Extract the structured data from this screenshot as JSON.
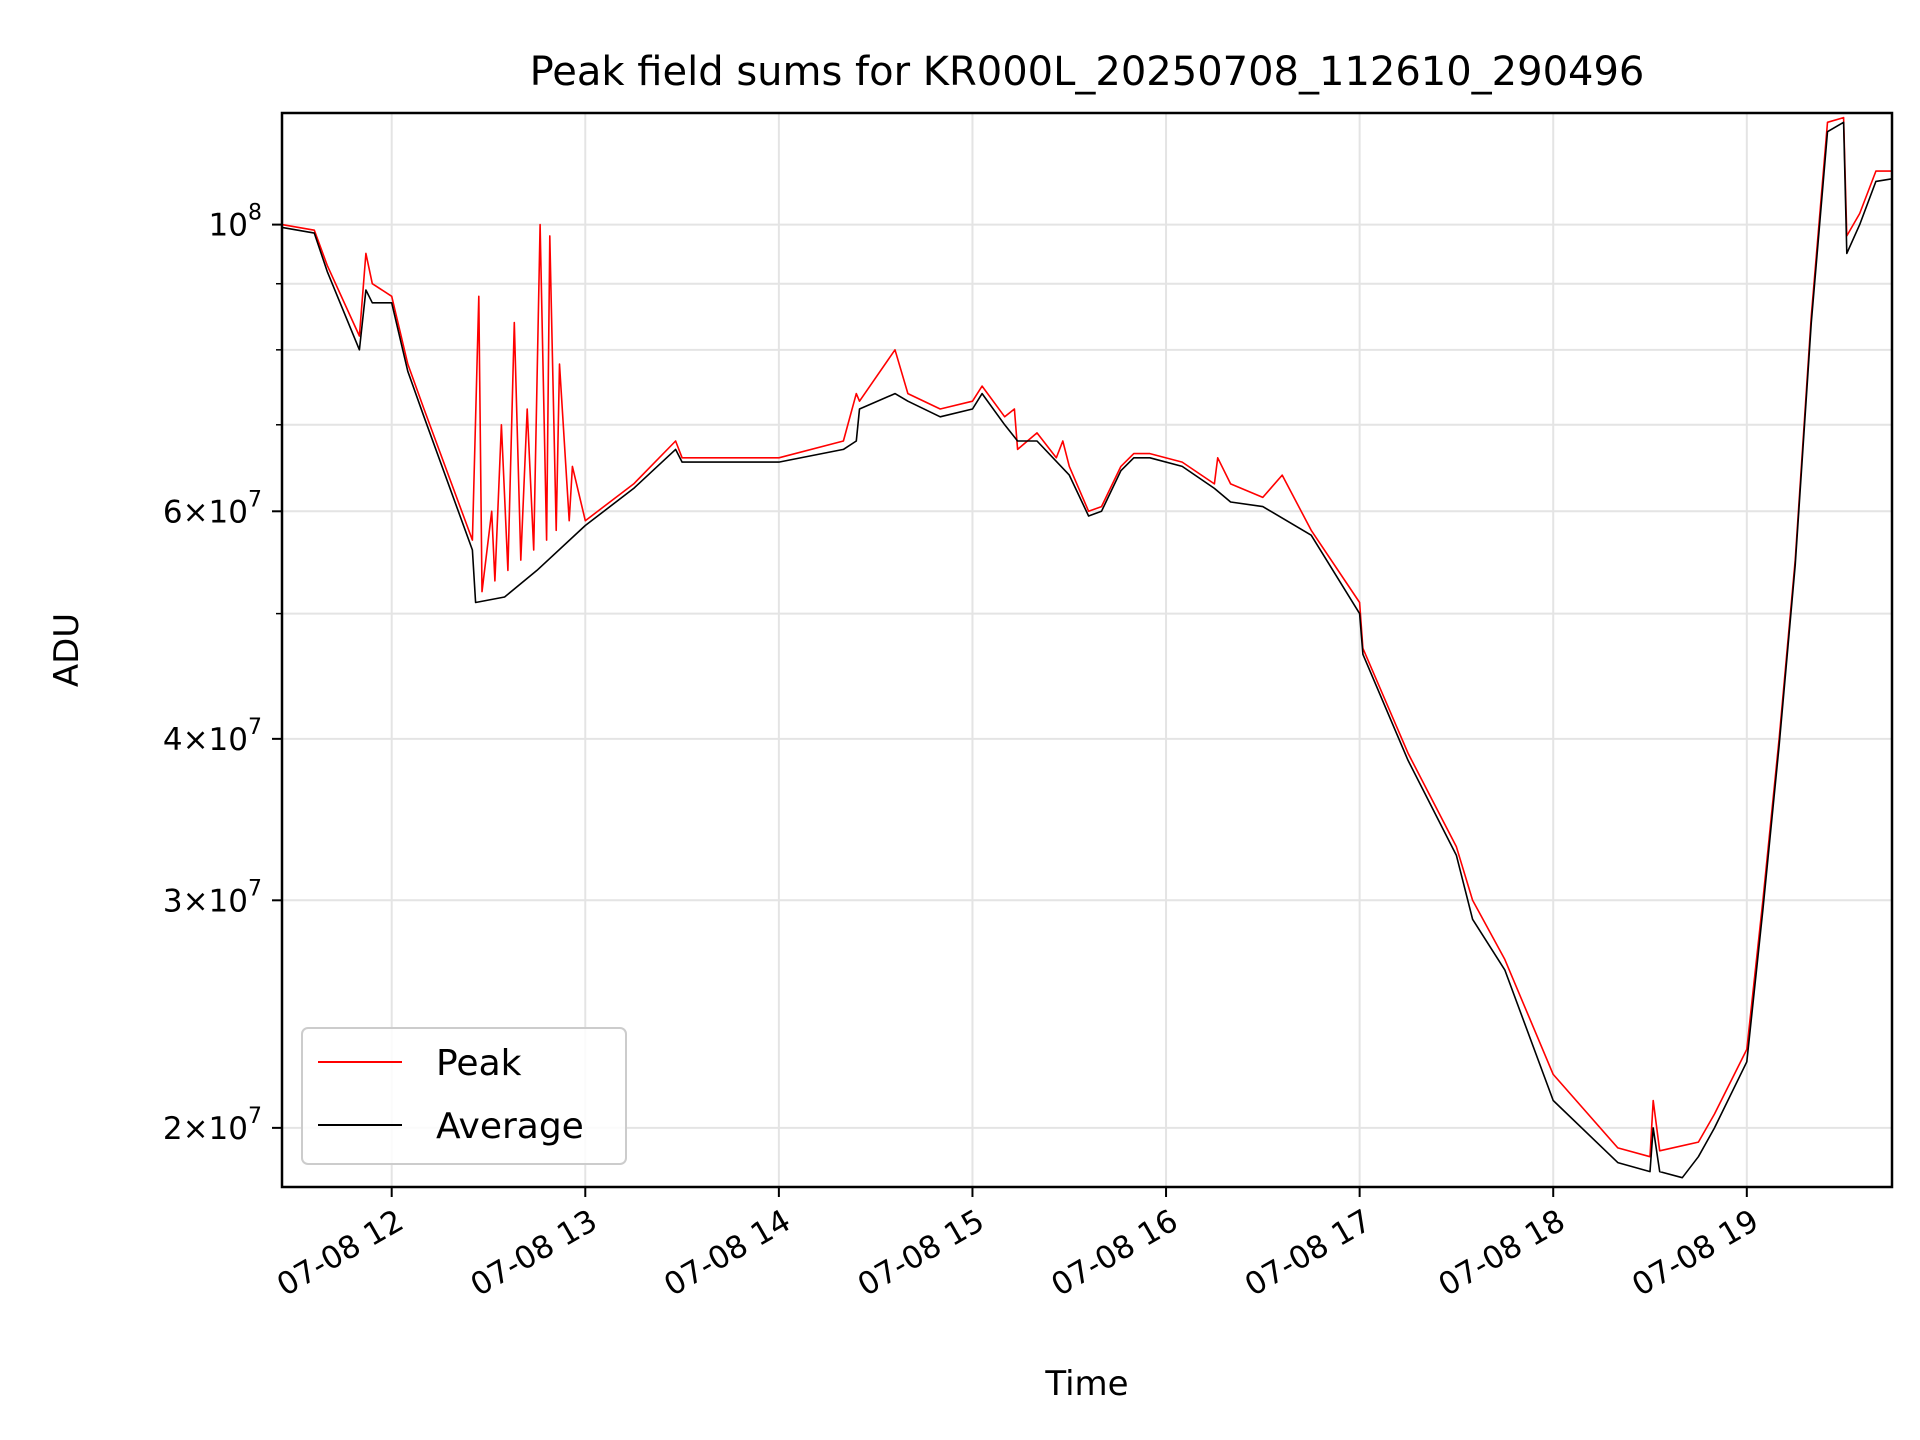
{
  "chart_data": {
    "type": "line",
    "title": "Peak field sums for KR000L_20250708_112610_290496",
    "xlabel": "Time",
    "ylabel": "ADU",
    "y_scale": "log",
    "xlim": [
      "2025-07-08 11:26",
      "2025-07-08 19:45"
    ],
    "ylim": [
      18000000,
      122000000
    ],
    "grid": true,
    "legend_position": "lower-left",
    "x_ticks": [
      {
        "t": "2025-07-08 12:00",
        "label": "07-08 12"
      },
      {
        "t": "2025-07-08 13:00",
        "label": "07-08 13"
      },
      {
        "t": "2025-07-08 14:00",
        "label": "07-08 14"
      },
      {
        "t": "2025-07-08 15:00",
        "label": "07-08 15"
      },
      {
        "t": "2025-07-08 16:00",
        "label": "07-08 16"
      },
      {
        "t": "2025-07-08 17:00",
        "label": "07-08 17"
      },
      {
        "t": "2025-07-08 18:00",
        "label": "07-08 18"
      },
      {
        "t": "2025-07-08 19:00",
        "label": "07-08 19"
      }
    ],
    "y_ticks": [
      {
        "value": 20000000,
        "mantissa": "2",
        "exponent": "7"
      },
      {
        "value": 30000000,
        "mantissa": "3",
        "exponent": "7"
      },
      {
        "value": 40000000,
        "mantissa": "4",
        "exponent": "7"
      },
      {
        "value": 60000000,
        "mantissa": "6",
        "exponent": "7"
      },
      {
        "value": 100000000,
        "mantissa": "",
        "exponent": "8"
      }
    ],
    "y_minor_ticks": [
      50000000,
      70000000,
      80000000,
      90000000
    ],
    "series": [
      {
        "name": "Peak",
        "color": "#ff0000",
        "x": [
          "2025-07-08 11:26",
          "2025-07-08 11:36",
          "2025-07-08 11:40",
          "2025-07-08 11:50",
          "2025-07-08 11:52",
          "2025-07-08 11:54",
          "2025-07-08 12:00",
          "2025-07-08 12:05",
          "2025-07-08 12:10",
          "2025-07-08 12:25",
          "2025-07-08 12:27",
          "2025-07-08 12:28",
          "2025-07-08 12:31",
          "2025-07-08 12:32",
          "2025-07-08 12:34",
          "2025-07-08 12:36",
          "2025-07-08 12:38",
          "2025-07-08 12:40",
          "2025-07-08 12:42",
          "2025-07-08 12:44",
          "2025-07-08 12:46",
          "2025-07-08 12:48",
          "2025-07-08 12:49",
          "2025-07-08 12:51",
          "2025-07-08 12:52",
          "2025-07-08 12:55",
          "2025-07-08 12:56",
          "2025-07-08 13:00",
          "2025-07-08 13:15",
          "2025-07-08 13:28",
          "2025-07-08 13:30",
          "2025-07-08 13:40",
          "2025-07-08 14:00",
          "2025-07-08 14:20",
          "2025-07-08 14:24",
          "2025-07-08 14:25",
          "2025-07-08 14:36",
          "2025-07-08 14:40",
          "2025-07-08 14:50",
          "2025-07-08 15:00",
          "2025-07-08 15:03",
          "2025-07-08 15:10",
          "2025-07-08 15:13",
          "2025-07-08 15:14",
          "2025-07-08 15:20",
          "2025-07-08 15:26",
          "2025-07-08 15:28",
          "2025-07-08 15:30",
          "2025-07-08 15:36",
          "2025-07-08 15:40",
          "2025-07-08 15:46",
          "2025-07-08 15:50",
          "2025-07-08 15:55",
          "2025-07-08 16:05",
          "2025-07-08 16:15",
          "2025-07-08 16:16",
          "2025-07-08 16:20",
          "2025-07-08 16:30",
          "2025-07-08 16:36",
          "2025-07-08 16:45",
          "2025-07-08 17:00",
          "2025-07-08 17:01",
          "2025-07-08 17:15",
          "2025-07-08 17:30",
          "2025-07-08 17:35",
          "2025-07-08 17:45",
          "2025-07-08 18:00",
          "2025-07-08 18:20",
          "2025-07-08 18:30",
          "2025-07-08 18:31",
          "2025-07-08 18:33",
          "2025-07-08 18:45",
          "2025-07-08 18:50",
          "2025-07-08 19:00",
          "2025-07-08 19:05",
          "2025-07-08 19:10",
          "2025-07-08 19:15",
          "2025-07-08 19:20",
          "2025-07-08 19:25",
          "2025-07-08 19:30",
          "2025-07-08 19:31",
          "2025-07-08 19:35",
          "2025-07-08 19:40",
          "2025-07-08 19:45"
        ],
        "y": [
          100000000,
          99000000,
          93000000,
          82000000,
          95000000,
          90000000,
          88000000,
          78000000,
          72000000,
          57000000,
          88000000,
          52000000,
          60000000,
          53000000,
          70000000,
          54000000,
          84000000,
          55000000,
          72000000,
          56000000,
          100000000,
          57000000,
          98000000,
          58000000,
          78000000,
          59000000,
          65000000,
          59000000,
          63000000,
          68000000,
          66000000,
          66000000,
          66000000,
          68000000,
          74000000,
          73000000,
          80000000,
          74000000,
          72000000,
          73000000,
          75000000,
          71000000,
          72000000,
          67000000,
          69000000,
          66000000,
          68000000,
          65000000,
          60000000,
          60500000,
          65000000,
          66500000,
          66500000,
          65500000,
          63000000,
          66000000,
          63000000,
          61500000,
          64000000,
          58000000,
          51000000,
          47000000,
          39000000,
          33000000,
          30000000,
          27000000,
          22000000,
          19300000,
          19000000,
          21000000,
          19200000,
          19500000,
          20500000,
          23000000,
          30000000,
          40000000,
          55000000,
          85000000,
          120000000,
          121000000,
          98000000,
          102000000,
          110000000,
          110000000
        ]
      },
      {
        "name": "Average",
        "color": "#000000",
        "x": [
          "2025-07-08 11:26",
          "2025-07-08 11:36",
          "2025-07-08 11:40",
          "2025-07-08 11:50",
          "2025-07-08 11:52",
          "2025-07-08 11:54",
          "2025-07-08 12:00",
          "2025-07-08 12:05",
          "2025-07-08 12:10",
          "2025-07-08 12:25",
          "2025-07-08 12:26",
          "2025-07-08 12:35",
          "2025-07-08 12:45",
          "2025-07-08 13:00",
          "2025-07-08 13:15",
          "2025-07-08 13:28",
          "2025-07-08 13:30",
          "2025-07-08 13:40",
          "2025-07-08 14:00",
          "2025-07-08 14:20",
          "2025-07-08 14:24",
          "2025-07-08 14:25",
          "2025-07-08 14:36",
          "2025-07-08 14:40",
          "2025-07-08 14:50",
          "2025-07-08 15:00",
          "2025-07-08 15:03",
          "2025-07-08 15:10",
          "2025-07-08 15:14",
          "2025-07-08 15:20",
          "2025-07-08 15:30",
          "2025-07-08 15:36",
          "2025-07-08 15:40",
          "2025-07-08 15:46",
          "2025-07-08 15:50",
          "2025-07-08 15:55",
          "2025-07-08 16:05",
          "2025-07-08 16:15",
          "2025-07-08 16:20",
          "2025-07-08 16:30",
          "2025-07-08 16:45",
          "2025-07-08 17:00",
          "2025-07-08 17:01",
          "2025-07-08 17:15",
          "2025-07-08 17:30",
          "2025-07-08 17:35",
          "2025-07-08 17:45",
          "2025-07-08 18:00",
          "2025-07-08 18:20",
          "2025-07-08 18:30",
          "2025-07-08 18:31",
          "2025-07-08 18:33",
          "2025-07-08 18:40",
          "2025-07-08 18:45",
          "2025-07-08 18:50",
          "2025-07-08 19:00",
          "2025-07-08 19:05",
          "2025-07-08 19:10",
          "2025-07-08 19:15",
          "2025-07-08 19:20",
          "2025-07-08 19:25",
          "2025-07-08 19:30",
          "2025-07-08 19:31",
          "2025-07-08 19:35",
          "2025-07-08 19:40",
          "2025-07-08 19:45"
        ],
        "y": [
          99500000,
          98500000,
          92000000,
          80000000,
          89000000,
          87000000,
          87000000,
          77000000,
          71000000,
          56000000,
          51000000,
          51500000,
          54000000,
          58500000,
          62500000,
          67000000,
          65500000,
          65500000,
          65500000,
          67000000,
          68000000,
          72000000,
          74000000,
          73000000,
          71000000,
          72000000,
          74000000,
          70000000,
          68000000,
          68000000,
          64000000,
          59500000,
          60000000,
          64500000,
          66000000,
          66000000,
          65000000,
          62500000,
          61000000,
          60500000,
          57500000,
          50000000,
          46500000,
          38500000,
          32500000,
          29000000,
          26500000,
          21000000,
          18800000,
          18500000,
          20000000,
          18500000,
          18300000,
          19000000,
          20000000,
          22500000,
          29500000,
          39500000,
          54500000,
          84000000,
          118000000,
          120000000,
          95000000,
          100000000,
          108000000,
          108500000
        ]
      }
    ]
  }
}
